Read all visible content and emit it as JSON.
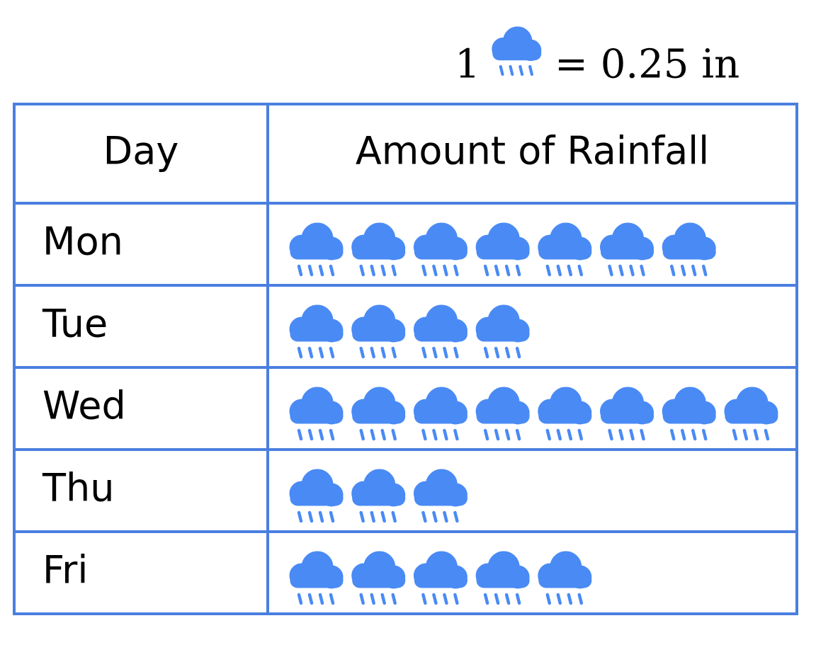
{
  "chart_data": {
    "type": "pictograph",
    "key": {
      "icons": 1,
      "equals": "= 0.25 in"
    },
    "column_headers": [
      "Day",
      "Amount of Rainfall"
    ],
    "categories": [
      "Mon",
      "Tue",
      "Wed",
      "Thu",
      "Fri"
    ],
    "values": [
      7,
      4,
      8,
      3,
      5
    ],
    "color": "#4a8af4",
    "border_color": "#4a7fe0"
  }
}
